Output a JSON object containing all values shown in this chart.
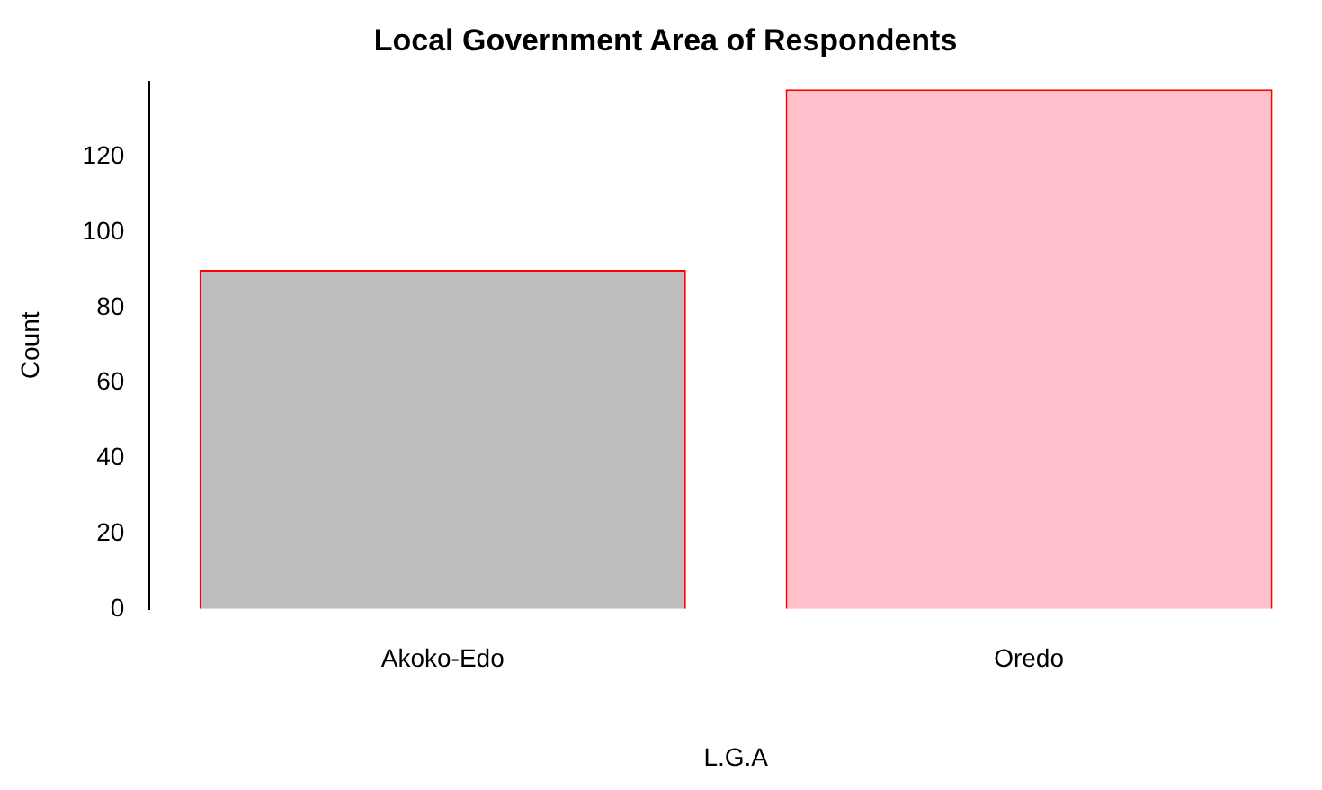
{
  "chart_data": {
    "type": "bar",
    "title": "Local Government Area of Respondents",
    "xlabel": "L.G.A",
    "ylabel": "Count",
    "categories": [
      "Akoko-Edo",
      "Oredo"
    ],
    "values": [
      90,
      138
    ],
    "colors": [
      "#bebebe",
      "#ffc0cb"
    ],
    "ylim": [
      0,
      140
    ],
    "yticks": [
      0,
      20,
      40,
      60,
      80,
      100,
      120
    ],
    "grid": false,
    "legend": false
  }
}
